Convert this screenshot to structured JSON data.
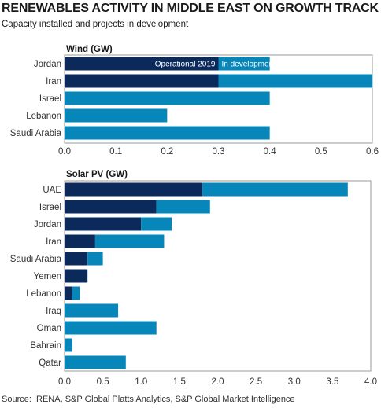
{
  "header": {
    "title": "RENEWABLES ACTIVITY IN MIDDLE EAST ON GROWTH TRACK",
    "subtitle": "Capacity installed and projects in development"
  },
  "footer": {
    "source": "Source: IRENA, S&P Global Platts Analytics, S&P Global Market Intelligence"
  },
  "colors": {
    "operational": "#0b2a5b",
    "development": "#0686b9",
    "frame": "#9a9a9a"
  },
  "chart_data": [
    {
      "type": "bar",
      "orientation": "horizontal",
      "stacked": true,
      "title": "Wind (GW)",
      "categories": [
        "Jordan",
        "Iran",
        "Israel",
        "Lebanon",
        "Saudi Arabia"
      ],
      "series": [
        {
          "name": "Operational 2019",
          "values": [
            0.3,
            0.3,
            0,
            0,
            0
          ]
        },
        {
          "name": "In development",
          "values": [
            0.1,
            0.3,
            0.4,
            0.2,
            0.4
          ]
        }
      ],
      "xlim": [
        0,
        0.6
      ],
      "xticks": [
        "0.0",
        "0.1",
        "0.2",
        "0.3",
        "0.4",
        "0.5",
        "0.6"
      ],
      "legend_position": "inside-top"
    },
    {
      "type": "bar",
      "orientation": "horizontal",
      "stacked": true,
      "title": "Solar PV (GW)",
      "categories": [
        "UAE",
        "Israel",
        "Jordan",
        "Iran",
        "Saudi Arabia",
        "Yemen",
        "Lebanon",
        "Iraq",
        "Oman",
        "Bahrain",
        "Qatar"
      ],
      "series": [
        {
          "name": "Operational 2019",
          "values": [
            1.8,
            1.2,
            1.0,
            0.4,
            0.3,
            0.3,
            0.1,
            0,
            0,
            0,
            0
          ]
        },
        {
          "name": "In development",
          "values": [
            1.9,
            0.7,
            0.4,
            0.9,
            0.2,
            0,
            0.1,
            0.7,
            1.2,
            0.1,
            0.8
          ]
        }
      ],
      "xlim": [
        0,
        4.0
      ],
      "xticks": [
        "0.0",
        "0.5",
        "1.0",
        "1.5",
        "2.0",
        "2.5",
        "3.0",
        "3.5",
        "4.0"
      ]
    }
  ]
}
